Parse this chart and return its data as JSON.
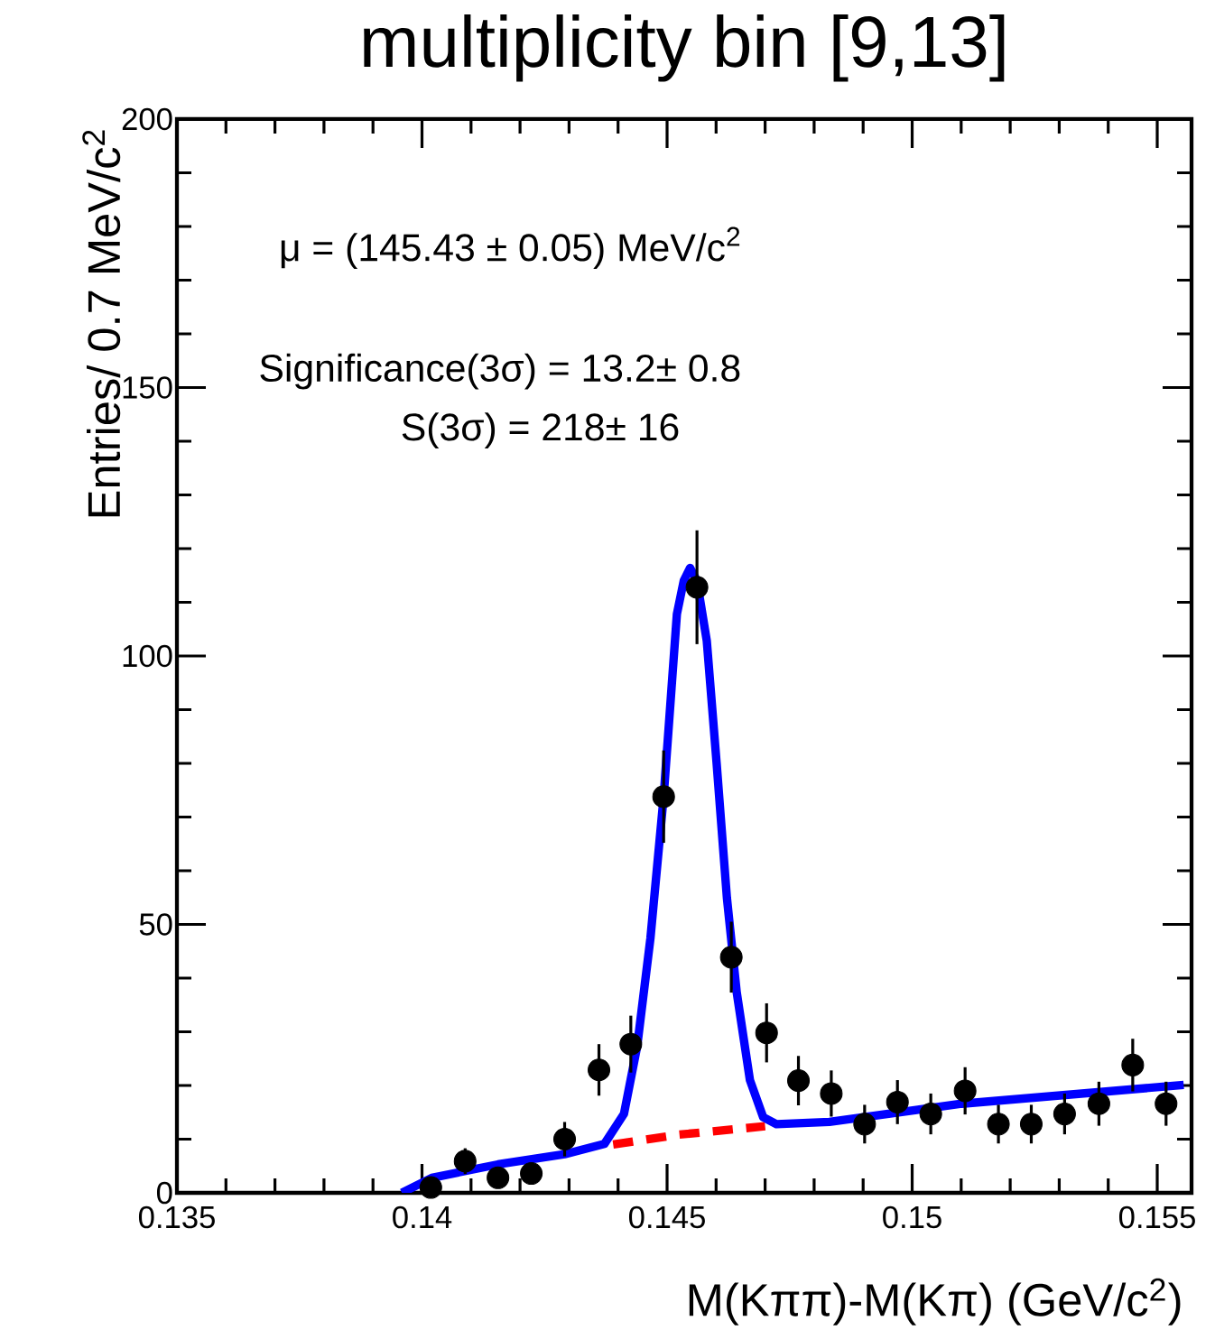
{
  "chart_data": {
    "type": "scatter",
    "title": "multiplicity bin [9,13]",
    "xlabel": "M(Kππ)-M(Kπ) (GeV/c$^{2}$)",
    "ylabel": "Entries/ 0.7 MeV/c$^{2}$",
    "annotations": [
      "μ = (145.43 ± 0.05) MeV/c$^{2}$",
      "Significance(3σ) = 13.2± 0.8",
      "S(3σ) = 218± 16"
    ],
    "xlim": [
      0.135,
      0.1557
    ],
    "ylim": [
      0,
      200
    ],
    "xticks": [
      0.135,
      0.14,
      0.145,
      0.15,
      0.155
    ],
    "yticks": [
      0,
      50,
      100,
      150,
      200
    ],
    "series": [
      {
        "type": "line",
        "color": "#ff0000",
        "line_style": "dashed",
        "marker": "none",
        "x": [
          0.1439,
          0.1452,
          0.147
        ],
        "values": [
          9,
          10.8,
          12.4
        ]
      },
      {
        "type": "line",
        "color": "#0000ff",
        "line_style": "solid",
        "marker": "none",
        "x": [
          0.13959,
          0.1402,
          0.14155,
          0.14291,
          0.14372,
          0.14412,
          0.14439,
          0.14466,
          0.14493,
          0.1452,
          0.14534,
          0.14547,
          0.14561,
          0.14581,
          0.14601,
          0.14622,
          0.14642,
          0.14669,
          0.14696,
          0.14723,
          0.14831,
          0.15101,
          0.15554
        ],
        "values": [
          0,
          2.8,
          5.3,
          7.2,
          9.1,
          14.7,
          27.3,
          47.4,
          73.8,
          107.8,
          114,
          116.4,
          114,
          102.8,
          80.1,
          55,
          37.4,
          21,
          14.1,
          12.8,
          13.2,
          16.6,
          20.1
        ]
      },
      {
        "color": "#000000",
        "marker": "circle",
        "x": [
          0.14018,
          0.14088,
          0.14155,
          0.14223,
          0.14291,
          0.14361,
          0.14426,
          0.14493,
          0.14561,
          0.14631,
          0.14703,
          0.14768,
          0.14835,
          0.14903,
          0.1497,
          0.15038,
          0.15108,
          0.15176,
          0.15243,
          0.15311,
          0.15381,
          0.1545,
          0.15518
        ],
        "values": [
          1,
          5.9,
          2.8,
          3.6,
          10,
          22.9,
          27.7,
          73.8,
          112.8,
          43.9,
          29.8,
          20.9,
          18.5,
          12.8,
          16.9,
          14.7,
          19,
          12.8,
          12.8,
          14.7,
          16.6,
          23.8,
          16.6
        ],
        "errors": [
          1,
          2.4,
          1.7,
          1.9,
          3.2,
          4.8,
          5.3,
          8.6,
          10.6,
          6.6,
          5.5,
          4.6,
          4.3,
          3.6,
          4.1,
          3.8,
          4.4,
          3.6,
          3.6,
          3.8,
          4.1,
          4.9,
          4.1
        ]
      }
    ]
  }
}
